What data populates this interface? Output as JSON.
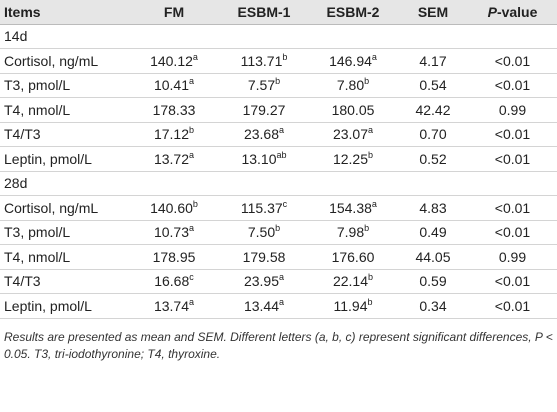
{
  "header": [
    "Items",
    "FM",
    "ESBM-1",
    "ESBM-2",
    "SEM",
    {
      "italic": "P",
      "rest": "-value"
    }
  ],
  "groups": [
    {
      "label": "14d",
      "rows": [
        {
          "item": "Cortisol, ng/mL",
          "values": [
            {
              "v": "140.12",
              "s": "a"
            },
            {
              "v": "113.71",
              "s": "b"
            },
            {
              "v": "146.94",
              "s": "a"
            }
          ],
          "sem": "4.17",
          "p": "<0.01"
        },
        {
          "item": "T3, pmol/L",
          "values": [
            {
              "v": "10.41",
              "s": "a"
            },
            {
              "v": "7.57",
              "s": "b"
            },
            {
              "v": "7.80",
              "s": "b"
            }
          ],
          "sem": "0.54",
          "p": "<0.01"
        },
        {
          "item": "T4, nmol/L",
          "values": [
            {
              "v": "178.33"
            },
            {
              "v": "179.27"
            },
            {
              "v": "180.05"
            }
          ],
          "sem": "42.42",
          "p": "0.99"
        },
        {
          "item": "T4/T3",
          "values": [
            {
              "v": "17.12",
              "s": "b"
            },
            {
              "v": "23.68",
              "s": "a"
            },
            {
              "v": "23.07",
              "s": "a"
            }
          ],
          "sem": "0.70",
          "p": "<0.01"
        },
        {
          "item": "Leptin, pmol/L",
          "values": [
            {
              "v": "13.72",
              "s": "a"
            },
            {
              "v": "13.10",
              "s": "ab"
            },
            {
              "v": "12.25",
              "s": "b"
            }
          ],
          "sem": "0.52",
          "p": "<0.01"
        }
      ]
    },
    {
      "label": "28d",
      "rows": [
        {
          "item": "Cortisol, ng/mL",
          "values": [
            {
              "v": "140.60",
              "s": "b"
            },
            {
              "v": "115.37",
              "s": "c"
            },
            {
              "v": "154.38",
              "s": "a"
            }
          ],
          "sem": "4.83",
          "p": "<0.01"
        },
        {
          "item": "T3, pmol/L",
          "values": [
            {
              "v": "10.73",
              "s": "a"
            },
            {
              "v": "7.50",
              "s": "b"
            },
            {
              "v": "7.98",
              "s": "b"
            }
          ],
          "sem": "0.49",
          "p": "<0.01"
        },
        {
          "item": "T4, nmol/L",
          "values": [
            {
              "v": "178.95"
            },
            {
              "v": "179.58"
            },
            {
              "v": "176.60"
            }
          ],
          "sem": "44.05",
          "p": "0.99"
        },
        {
          "item": "T4/T3",
          "values": [
            {
              "v": "16.68",
              "s": "c"
            },
            {
              "v": "23.95",
              "s": "a"
            },
            {
              "v": "22.14",
              "s": "b"
            }
          ],
          "sem": "0.59",
          "p": "<0.01"
        },
        {
          "item": "Leptin, pmol/L",
          "values": [
            {
              "v": "13.74",
              "s": "a"
            },
            {
              "v": "13.44",
              "s": "a"
            },
            {
              "v": "11.94",
              "s": "b"
            }
          ],
          "sem": "0.34",
          "p": "<0.01"
        }
      ]
    }
  ],
  "footnote": "Results are presented as mean and SEM. Different letters (a, b, c) represent significant differences, P < 0.05. T3, tri-iodothyronine; T4, thyroxine."
}
